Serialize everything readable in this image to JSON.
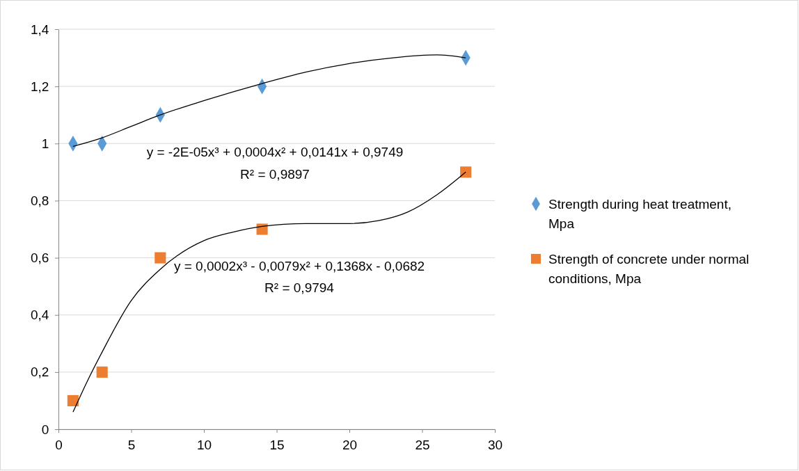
{
  "chart_data": {
    "type": "scatter",
    "xlim": [
      0,
      30
    ],
    "xticks": [
      0,
      5,
      10,
      15,
      20,
      25,
      30
    ],
    "ylim": [
      0,
      1.4
    ],
    "yticks": [
      0,
      {
        "value": 0.2,
        "label": "0,2"
      },
      {
        "value": 0.4,
        "label": "0,4"
      },
      {
        "value": 0.6,
        "label": "0,6"
      },
      {
        "value": 0.8,
        "label": "0,8"
      },
      1,
      {
        "value": 1.2,
        "label": "1,2"
      },
      {
        "value": 1.4,
        "label": "1,4"
      }
    ],
    "grid": "y",
    "legend": "right",
    "series": [
      {
        "name": "Strength during heat treatment, Mpa",
        "color": "#5b9bd5",
        "marker": "diamond",
        "x": [
          1,
          3,
          7,
          14,
          28
        ],
        "values": [
          1,
          1,
          1.1,
          1.2,
          1.3
        ]
      },
      {
        "name": "Strength of concrete under normal conditions, Mpa",
        "color": "#ed7d31",
        "marker": "square",
        "x": [
          1,
          3,
          7,
          14,
          28
        ],
        "values": [
          0.1,
          0.2,
          0.6,
          0.7,
          0.9
        ]
      },
      {
        "type": "line",
        "color": "#000000",
        "marker": "none",
        "x": [
          1,
          3,
          5,
          7,
          10,
          14,
          17,
          20,
          23,
          26,
          28
        ],
        "values": [
          0.99,
          1.02,
          1.06,
          1.1,
          1.15,
          1.21,
          1.25,
          1.28,
          1.3,
          1.31,
          1.3
        ]
      },
      {
        "type": "line",
        "color": "#000000",
        "marker": "none",
        "x": [
          1,
          2,
          3,
          5,
          7,
          10,
          12,
          14,
          17,
          20,
          22,
          24,
          26,
          28
        ],
        "values": [
          0.06,
          0.17,
          0.27,
          0.45,
          0.56,
          0.66,
          0.69,
          0.71,
          0.72,
          0.72,
          0.73,
          0.76,
          0.82,
          0.9
        ]
      }
    ],
    "annotations": [
      "y = -2E-05x³ + 0,0004x² + 0,0141x + 0,9749",
      "R² = 0,9897",
      "y = 0,0002x³ - 0,0079x² + 0,1368x - 0,0682",
      "R² = 0,9794"
    ]
  }
}
